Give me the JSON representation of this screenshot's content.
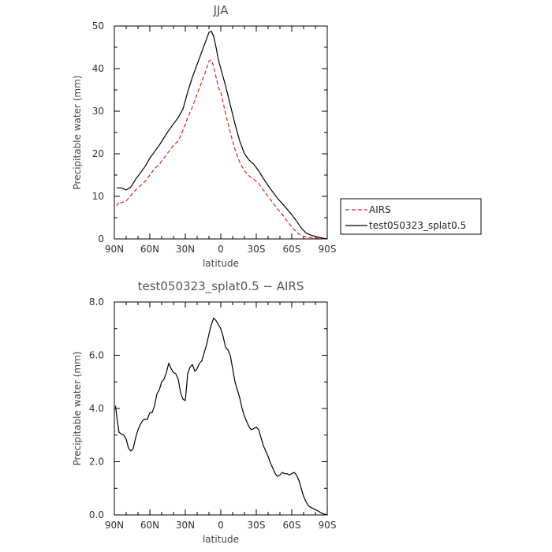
{
  "chart_data": [
    {
      "type": "line",
      "title": "JJA",
      "xlabel": "latitude",
      "ylabel": "Precipitable water (mm)",
      "xlim": [
        90,
        -90
      ],
      "ylim": [
        0,
        50
      ],
      "x_ticks": [
        "90N",
        "60N",
        "30N",
        "0",
        "30S",
        "60S",
        "90S"
      ],
      "x_tick_values": [
        90,
        60,
        30,
        0,
        -30,
        -60,
        -90
      ],
      "y_ticks": [
        "0",
        "10",
        "20",
        "30",
        "40",
        "50"
      ],
      "y_tick_values": [
        0,
        10,
        20,
        30,
        40,
        50
      ],
      "legend": "right",
      "series": [
        {
          "name": "AIRS",
          "color": "#e02020",
          "dash": "dashed",
          "x": [
            88,
            86,
            84,
            80,
            76,
            72,
            68,
            64,
            60,
            56,
            52,
            48,
            44,
            40,
            36,
            32,
            28,
            24,
            20,
            16,
            12,
            10,
            8,
            6,
            4,
            2,
            0,
            -2,
            -4,
            -8,
            -12,
            -16,
            -20,
            -24,
            -28,
            -32,
            -36,
            -40,
            -44,
            -48,
            -52,
            -56,
            -60,
            -64,
            -68,
            -72,
            -76,
            -80,
            -84,
            -88,
            -90
          ],
          "y": [
            7.8,
            8.8,
            8.5,
            8.9,
            10.2,
            11.5,
            12.5,
            13.5,
            15,
            16.5,
            17.5,
            19,
            20.5,
            22,
            23,
            25.5,
            28.5,
            31,
            34,
            37,
            40,
            41.8,
            42,
            40.5,
            38,
            35.5,
            34.5,
            32,
            29.5,
            25,
            21,
            18,
            16,
            14.8,
            14,
            13,
            11.5,
            10,
            8.5,
            7,
            5.8,
            4.2,
            2.8,
            1.6,
            0.8,
            0.5,
            0.3,
            0.2,
            0.1,
            0.05,
            0
          ]
        },
        {
          "name": "test050323_splat0.5",
          "color": "#000000",
          "dash": "solid",
          "x": [
            88,
            84,
            80,
            76,
            72,
            68,
            64,
            60,
            56,
            52,
            48,
            44,
            40,
            36,
            32,
            28,
            24,
            20,
            16,
            12,
            10,
            8,
            6,
            4,
            2,
            0,
            -2,
            -4,
            -8,
            -12,
            -16,
            -20,
            -24,
            -28,
            -32,
            -36,
            -40,
            -44,
            -48,
            -52,
            -56,
            -60,
            -64,
            -68,
            -72,
            -76,
            -80,
            -84,
            -88,
            -90
          ],
          "y": [
            12,
            12,
            11.5,
            12.2,
            14,
            15.5,
            17,
            19,
            20.5,
            22,
            23.8,
            25.5,
            27,
            28.5,
            30.5,
            34.5,
            38,
            41,
            44,
            47,
            48.5,
            48.8,
            47.5,
            45,
            42,
            40,
            38,
            36,
            31.5,
            27,
            23,
            20,
            18.5,
            17.5,
            16,
            14.2,
            12.5,
            11,
            9.5,
            8.3,
            7,
            5.7,
            4.2,
            2.6,
            1.4,
            0.9,
            0.6,
            0.3,
            0.1,
            0
          ]
        }
      ]
    },
    {
      "type": "line",
      "title": "test050323_splat0.5 − AIRS",
      "xlabel": "latitude",
      "ylabel": "Precipitable water (mm)",
      "xlim": [
        90,
        -90
      ],
      "ylim": [
        0,
        8
      ],
      "x_ticks": [
        "90N",
        "60N",
        "30N",
        "0",
        "30S",
        "60S",
        "90S"
      ],
      "x_tick_values": [
        90,
        60,
        30,
        0,
        -30,
        -60,
        -90
      ],
      "y_ticks": [
        "0.0",
        "2.0",
        "4.0",
        "6.0",
        "8.0"
      ],
      "y_tick_values": [
        0,
        2,
        4,
        6,
        8
      ],
      "series": [
        {
          "color": "#000000",
          "dash": "solid",
          "x": [
            89,
            88,
            86,
            84,
            82,
            80,
            78,
            76,
            74,
            72,
            70,
            68,
            66,
            64,
            62,
            60,
            58,
            56,
            54,
            52,
            50,
            48,
            46,
            44,
            42,
            40,
            38,
            36,
            34,
            32,
            30,
            28,
            26,
            24,
            22,
            20,
            18,
            16,
            14,
            12,
            10,
            8,
            6,
            4,
            2,
            0,
            -2,
            -4,
            -6,
            -8,
            -10,
            -12,
            -14,
            -16,
            -18,
            -20,
            -22,
            -24,
            -26,
            -28,
            -30,
            -32,
            -34,
            -36,
            -38,
            -40,
            -42,
            -44,
            -46,
            -48,
            -50,
            -52,
            -54,
            -56,
            -58,
            -60,
            -62,
            -64,
            -66,
            -68,
            -70,
            -72,
            -74,
            -76,
            -78,
            -80,
            -82,
            -84,
            -86,
            -88,
            -90
          ],
          "y": [
            4.1,
            3.7,
            3.1,
            3.05,
            3.0,
            2.85,
            2.5,
            2.4,
            2.5,
            2.9,
            3.2,
            3.4,
            3.55,
            3.6,
            3.6,
            3.85,
            3.85,
            4.1,
            4.55,
            4.7,
            5.0,
            5.1,
            5.35,
            5.7,
            5.5,
            5.35,
            5.3,
            5.1,
            4.6,
            4.35,
            4.3,
            5.3,
            5.55,
            5.65,
            5.4,
            5.5,
            5.7,
            5.8,
            6.1,
            6.4,
            6.8,
            7.15,
            7.4,
            7.3,
            7.15,
            7.0,
            6.7,
            6.3,
            6.2,
            6.0,
            5.5,
            5.0,
            4.7,
            4.4,
            4.0,
            3.7,
            3.5,
            3.3,
            3.2,
            3.25,
            3.3,
            3.2,
            2.9,
            2.6,
            2.4,
            2.2,
            1.95,
            1.75,
            1.55,
            1.45,
            1.5,
            1.6,
            1.55,
            1.55,
            1.5,
            1.55,
            1.6,
            1.5,
            1.3,
            1.0,
            0.7,
            0.5,
            0.35,
            0.28,
            0.25,
            0.2,
            0.15,
            0.1,
            0.05,
            0.02,
            0.02
          ]
        }
      ]
    }
  ]
}
